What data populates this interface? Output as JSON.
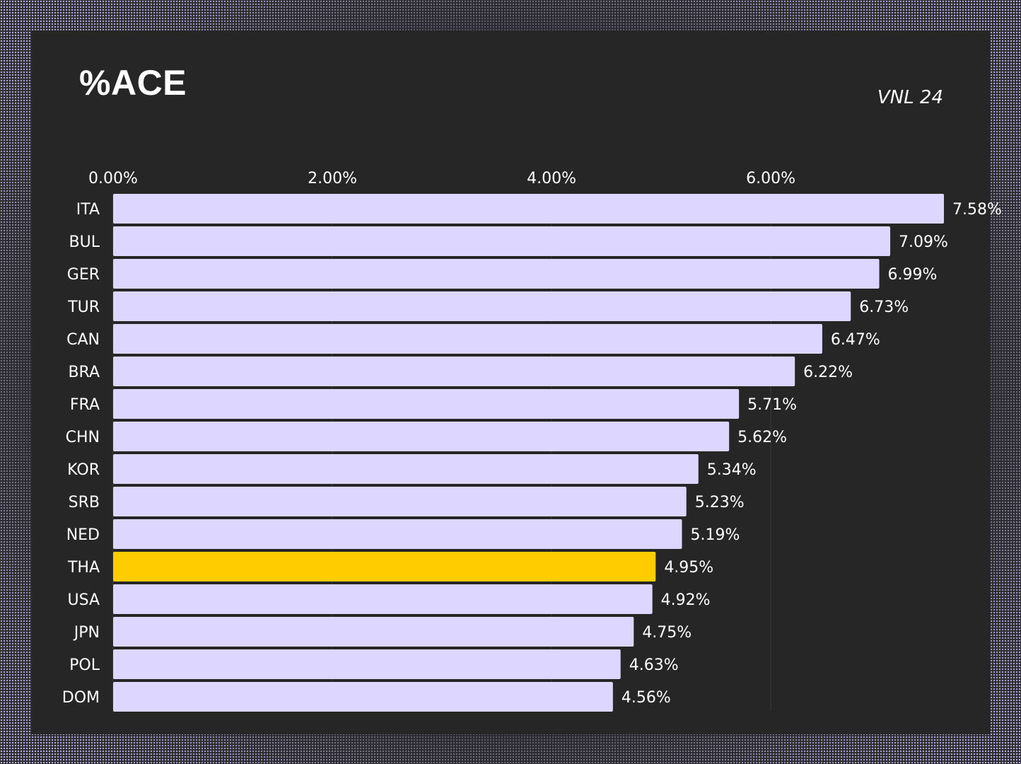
{
  "header": {
    "title": "%ACE",
    "subtitle": "VNL 24"
  },
  "colors": {
    "bar": "#ddd6fe",
    "highlight": "#ffcc00",
    "text": "#ffffff",
    "grid": "#3a3a3a"
  },
  "chart_data": {
    "type": "bar",
    "orientation": "horizontal",
    "title": "%ACE",
    "subtitle": "VNL 24",
    "xlim": [
      0,
      7.58
    ],
    "x_ticks": [
      0,
      2,
      4,
      6
    ],
    "x_tick_labels": [
      "0.00%",
      "2.00%",
      "4.00%",
      "6.00%"
    ],
    "x_axis_position": "top",
    "highlight_category": "THA",
    "categories": [
      "ITA",
      "BUL",
      "GER",
      "TUR",
      "CAN",
      "BRA",
      "FRA",
      "CHN",
      "KOR",
      "SRB",
      "NED",
      "THA",
      "USA",
      "JPN",
      "POL",
      "DOM"
    ],
    "values": [
      7.58,
      7.09,
      6.99,
      6.73,
      6.47,
      6.22,
      5.71,
      5.62,
      5.34,
      5.23,
      5.19,
      4.95,
      4.92,
      4.75,
      4.63,
      4.56
    ],
    "value_labels": [
      "7.58%",
      "7.09%",
      "6.99%",
      "6.73%",
      "6.47%",
      "6.22%",
      "5.71%",
      "5.62%",
      "5.34%",
      "5.23%",
      "5.19%",
      "4.95%",
      "4.92%",
      "4.75%",
      "4.63%",
      "4.56%"
    ]
  }
}
